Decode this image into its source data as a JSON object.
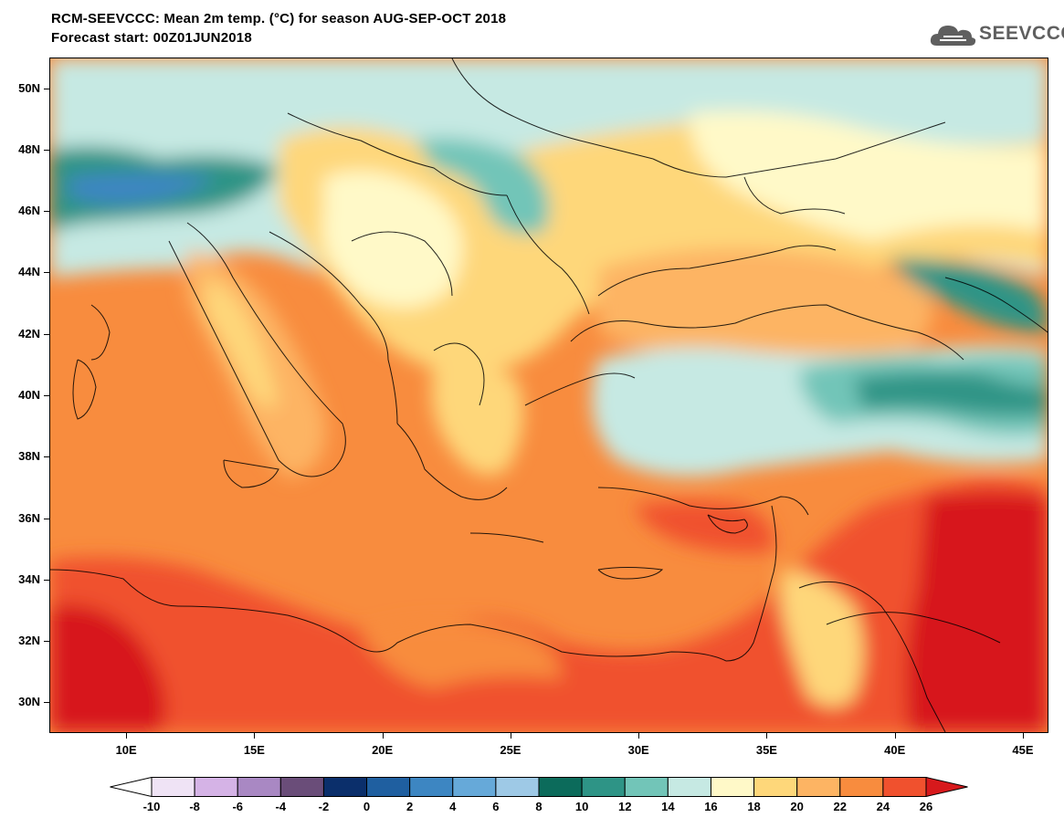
{
  "header": {
    "title_line1": "RCM-SEEVCCC: Mean 2m temp. (°C) for season AUG-SEP-OCT 2018",
    "title_line2": "Forecast start: 00Z01JUN2018",
    "logo_text": "SEEVCCC"
  },
  "map": {
    "lon_range": [
      7,
      46
    ],
    "lat_range": [
      29,
      51
    ],
    "lat_ticks": [
      {
        "value": 50,
        "label": "50N"
      },
      {
        "value": 48,
        "label": "48N"
      },
      {
        "value": 46,
        "label": "46N"
      },
      {
        "value": 44,
        "label": "44N"
      },
      {
        "value": 42,
        "label": "42N"
      },
      {
        "value": 40,
        "label": "40N"
      },
      {
        "value": 38,
        "label": "38N"
      },
      {
        "value": 36,
        "label": "36N"
      },
      {
        "value": 34,
        "label": "34N"
      },
      {
        "value": 32,
        "label": "32N"
      },
      {
        "value": 30,
        "label": "30N"
      }
    ],
    "lon_ticks": [
      {
        "value": 10,
        "label": "10E"
      },
      {
        "value": 15,
        "label": "15E"
      },
      {
        "value": 20,
        "label": "20E"
      },
      {
        "value": 25,
        "label": "25E"
      },
      {
        "value": 30,
        "label": "30E"
      },
      {
        "value": 35,
        "label": "35E"
      },
      {
        "value": 40,
        "label": "40E"
      },
      {
        "value": 45,
        "label": "45E"
      }
    ]
  },
  "colorbar": {
    "labels": [
      "-10",
      "-8",
      "-6",
      "-4",
      "-2",
      "0",
      "2",
      "4",
      "6",
      "8",
      "10",
      "12",
      "14",
      "16",
      "18",
      "20",
      "22",
      "24",
      "26"
    ],
    "colors": [
      "#ffffff",
      "#efe3f5",
      "#d5b3e6",
      "#a988c3",
      "#6a4d79",
      "#0b2f6b",
      "#1f5fa0",
      "#3d86c2",
      "#66a9d9",
      "#9ec9e6",
      "#0c6b5b",
      "#2e9486",
      "#72c5b8",
      "#c6e9e3",
      "#fff9c8",
      "#fed77a",
      "#fdb463",
      "#f88c3e",
      "#f0512e",
      "#d7191c"
    ]
  }
}
